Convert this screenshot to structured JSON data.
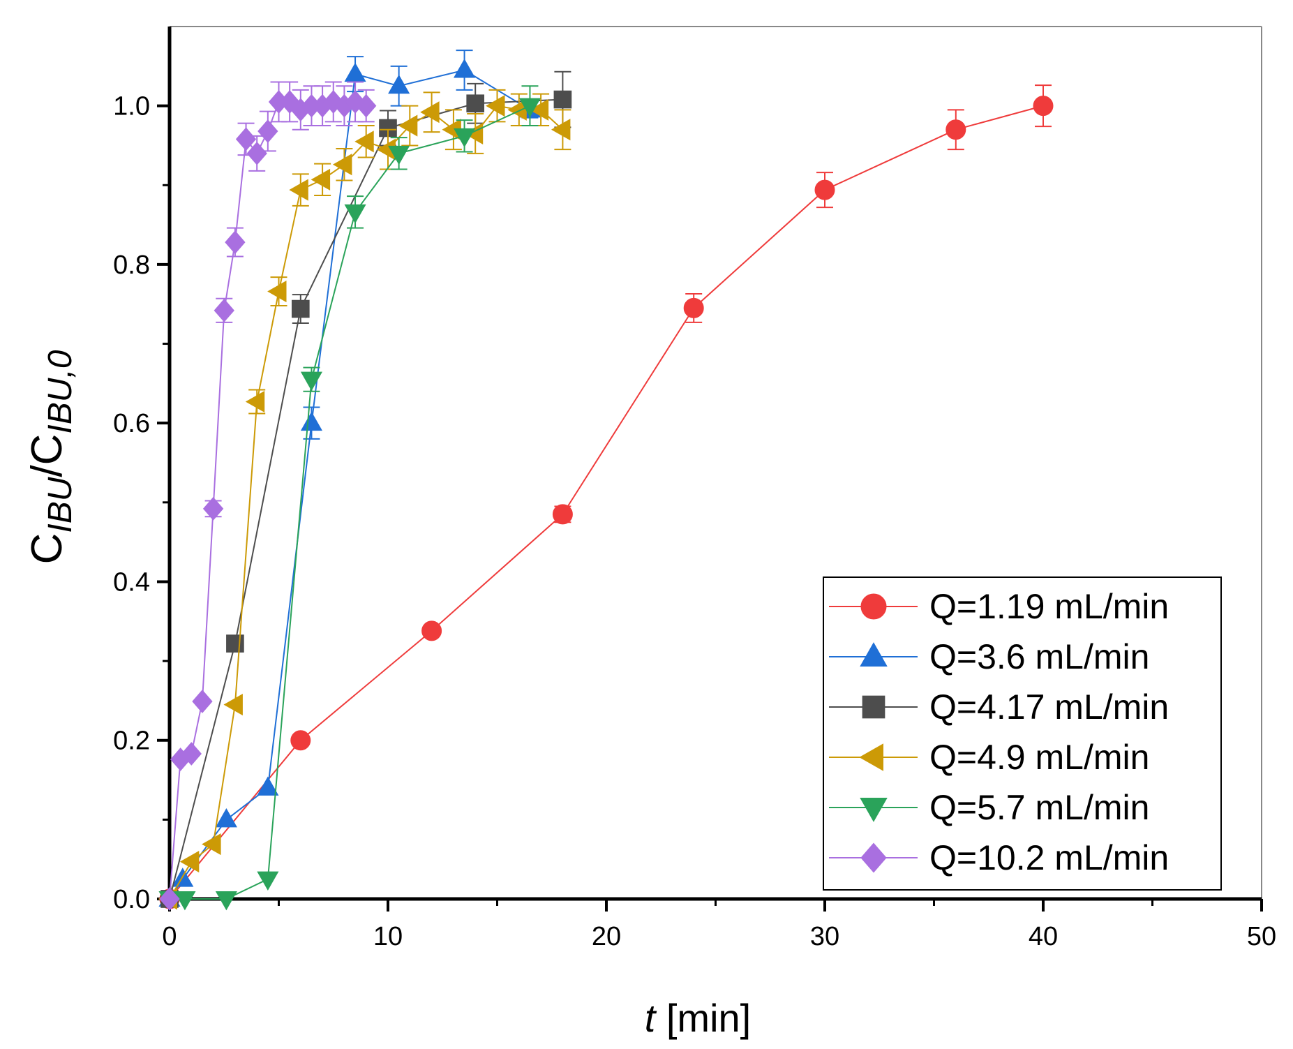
{
  "chart_data": {
    "type": "line",
    "title": "",
    "xlabel": {
      "italic": "t",
      "rest": " [min]"
    },
    "ylabel": {
      "base1": "C",
      "sub1": "IBU",
      "slash": "/",
      "base2": "C",
      "sub2": "IBU,0"
    },
    "xlim": [
      0,
      50
    ],
    "ylim": [
      0,
      1.1
    ],
    "xticks": [
      0,
      10,
      20,
      30,
      40,
      50
    ],
    "xtick_labels": [
      "0",
      "10",
      "20",
      "30",
      "40",
      "50"
    ],
    "yticks": [
      0,
      0.2,
      0.4,
      0.6,
      0.8,
      1.0
    ],
    "ytick_labels": [
      "0.0",
      "0.2",
      "0.4",
      "0.6",
      "0.8",
      "1.0"
    ],
    "grid": false,
    "legend_position": "bottom-right",
    "series": [
      {
        "name": "Q=1.19 mL/min",
        "color": "#ef3b3b",
        "marker": "circle",
        "x": [
          0,
          6,
          12,
          18,
          24,
          30,
          36,
          40
        ],
        "y": [
          0,
          0.2,
          0.338,
          0.485,
          0.745,
          0.894,
          0.97,
          1.0
        ],
        "err": [
          0,
          0,
          0,
          0.01,
          0.018,
          0.022,
          0.025,
          0.026
        ]
      },
      {
        "name": "Q=3.6 mL/min",
        "color": "#1f6fd6",
        "marker": "triangle-up",
        "x": [
          0,
          0.6,
          2.6,
          4.5,
          6.5,
          8.5,
          10.5,
          13.5,
          16.5
        ],
        "y": [
          0,
          0.025,
          0.1,
          0.14,
          0.6,
          1.04,
          1.025,
          1.045,
          0.995
        ],
        "err": [
          0,
          0,
          0,
          0,
          0.02,
          0.022,
          0.025,
          0.025,
          0.01
        ]
      },
      {
        "name": "Q=4.17 mL/min",
        "color": "#4d4d4d",
        "marker": "square",
        "x": [
          0,
          3,
          6,
          10,
          14,
          18
        ],
        "y": [
          0,
          0.322,
          0.744,
          0.972,
          1.003,
          1.008
        ],
        "err": [
          0,
          0,
          0.018,
          0.022,
          0.025,
          0.035
        ]
      },
      {
        "name": "Q=4.9 mL/min",
        "color": "#cc9a06",
        "marker": "triangle-left",
        "x": [
          0,
          1,
          2,
          3,
          4,
          5,
          6,
          7,
          8,
          9,
          10,
          11,
          12,
          13,
          14,
          15,
          16,
          17,
          18
        ],
        "y": [
          0,
          0.047,
          0.069,
          0.245,
          0.627,
          0.766,
          0.894,
          0.907,
          0.926,
          0.955,
          0.945,
          0.975,
          0.992,
          0.97,
          0.965,
          1.0,
          0.995,
          0.995,
          0.97
        ],
        "err": [
          0,
          0,
          0,
          0,
          0.015,
          0.018,
          0.02,
          0.02,
          0.02,
          0.02,
          0.025,
          0.025,
          0.025,
          0.025,
          0.025,
          0.02,
          0.02,
          0.02,
          0.025
        ]
      },
      {
        "name": "Q=5.7 mL/min",
        "color": "#2aa35a",
        "marker": "triangle-down",
        "x": [
          0,
          0.7,
          2.6,
          4.5,
          6.5,
          8.5,
          10.5,
          13.5,
          16.5
        ],
        "y": [
          0,
          0.0,
          0.0,
          0.025,
          0.655,
          0.866,
          0.94,
          0.962,
          1.0
        ],
        "err": [
          0,
          0,
          0,
          0,
          0.015,
          0.02,
          0.02,
          0.02,
          0.025
        ]
      },
      {
        "name": "Q=10.2 mL/min",
        "color": "#a96fe0",
        "marker": "diamond",
        "x": [
          0,
          0.5,
          1.0,
          1.5,
          2.0,
          2.5,
          3.0,
          3.5,
          4.0,
          4.5,
          5.0,
          5.5,
          6.0,
          6.5,
          7.0,
          7.5,
          8.0,
          8.5,
          9.0
        ],
        "y": [
          0,
          0.176,
          0.183,
          0.249,
          0.492,
          0.742,
          0.828,
          0.958,
          0.94,
          0.968,
          1.005,
          1.005,
          0.995,
          1.0,
          1.0,
          1.005,
          1.0,
          1.005,
          1.0
        ],
        "err": [
          0,
          0,
          0,
          0,
          0.01,
          0.015,
          0.018,
          0.02,
          0.022,
          0.025,
          0.025,
          0.025,
          0.025,
          0.025,
          0.025,
          0.025,
          0.025,
          0.025,
          0.02
        ]
      }
    ]
  }
}
